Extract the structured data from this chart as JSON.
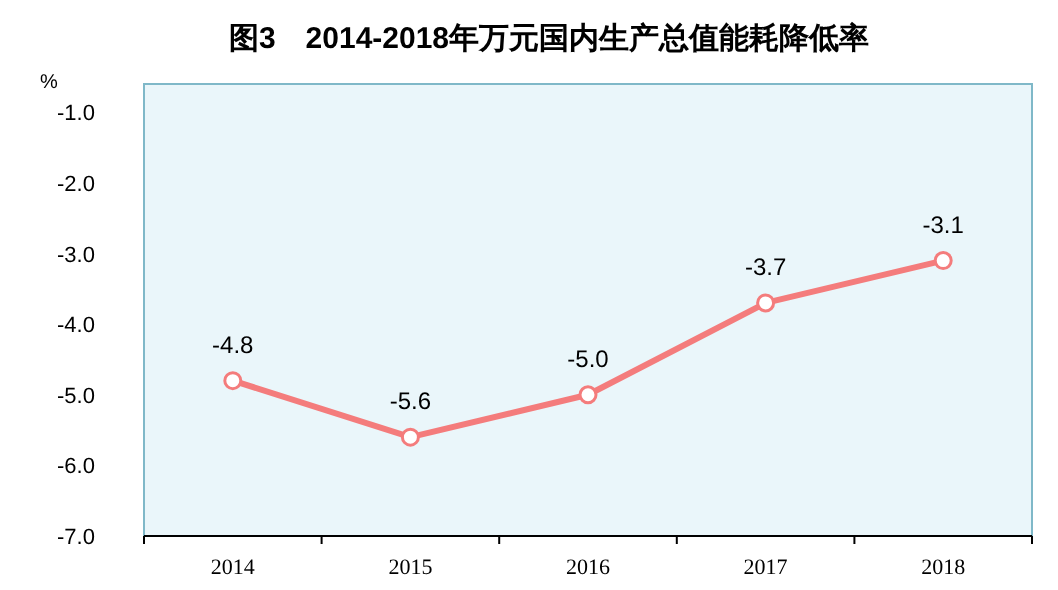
{
  "chart_data": {
    "type": "line",
    "title": "图3　2014-2018年万元国内生产总值能耗降低率",
    "ylabel": "%",
    "categories": [
      "2014",
      "2015",
      "2016",
      "2017",
      "2018"
    ],
    "series": [
      {
        "color": "#f47c7c",
        "values": [
          -4.8,
          -5.6,
          -5.0,
          -3.7,
          -3.1
        ],
        "value_labels": [
          "-4.8",
          "-5.6",
          "-5.0",
          "-3.7",
          "-3.1"
        ]
      }
    ],
    "ylim": [
      -7.0,
      -0.6
    ],
    "yticks": [
      {
        "value": -7,
        "label": "-7.0"
      },
      {
        "value": -6,
        "label": "-6.0"
      },
      {
        "value": -5,
        "label": "-5.0"
      },
      {
        "value": -4,
        "label": "-4.0"
      },
      {
        "value": -3,
        "label": "-3.0"
      },
      {
        "value": -2,
        "label": "-2.0"
      },
      {
        "value": -1,
        "label": "-1.0"
      }
    ],
    "marker": "circle",
    "line_style": "solid",
    "grid": false
  }
}
